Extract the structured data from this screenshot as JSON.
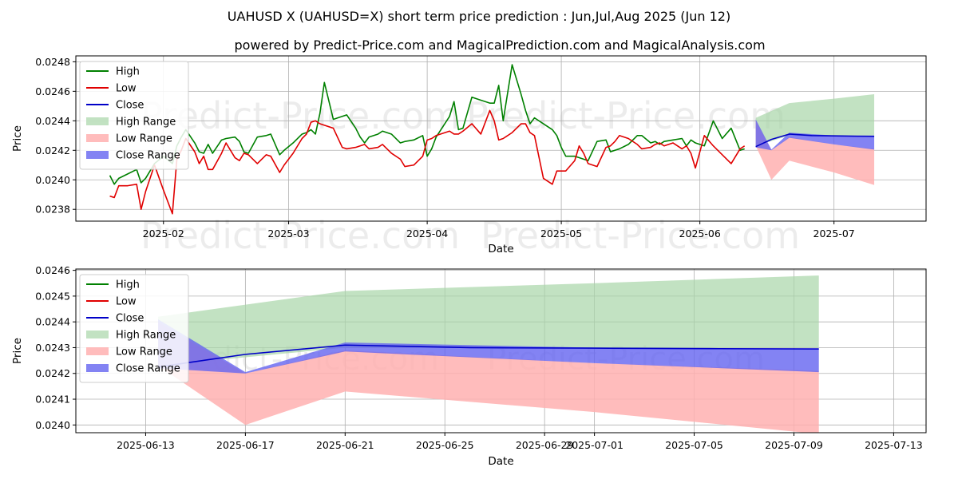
{
  "colors": {
    "high": "#008000",
    "low": "#e00000",
    "close": "#0000c8",
    "high_range": "#a8d5a8",
    "low_range": "#ffb0b0",
    "close_range": "#6464f0",
    "grid": "#b0b0b0"
  },
  "chart_data": [
    {
      "type": "line",
      "title": "UAHUSD X (UAHUSD=X) short term price prediction : Jun,Jul,Aug 2025 (Jun 12)",
      "subtitle": "powered by Predict-Price.com and MagicalPrediction.com and MagicalAnalysis.com",
      "watermarks": [
        "Predict-Price.com",
        "Predict-Price.com",
        "Predict-Price.com",
        "Predict-Price.com"
      ],
      "xlabel": "Date",
      "ylabel": "Price",
      "x_unit": "days since 2025-01-01",
      "xlim": [
        11.4,
        201.6
      ],
      "ylim": [
        0.02372,
        0.02484
      ],
      "x_ticks": [
        {
          "x": 31,
          "label": "2025-02"
        },
        {
          "x": 59,
          "label": "2025-03"
        },
        {
          "x": 90,
          "label": "2025-04"
        },
        {
          "x": 120,
          "label": "2025-05"
        },
        {
          "x": 151,
          "label": "2025-06"
        },
        {
          "x": 181,
          "label": "2025-07"
        }
      ],
      "y_ticks": [
        {
          "v": 0.0238,
          "label": "0.0238"
        },
        {
          "v": 0.024,
          "label": "0.0240"
        },
        {
          "v": 0.0242,
          "label": "0.0242"
        },
        {
          "v": 0.0244,
          "label": "0.0244"
        },
        {
          "v": 0.0246,
          "label": "0.0246"
        },
        {
          "v": 0.0248,
          "label": "0.0248"
        }
      ],
      "legend": [
        "High",
        "Low",
        "Close",
        "High Range",
        "Low Range",
        "Close Range"
      ],
      "legend_position": "top-left",
      "series": [
        {
          "name": "High",
          "x": [
            19,
            20,
            21,
            23,
            25,
            26,
            27,
            29,
            31,
            33,
            34,
            35,
            36,
            38,
            39,
            40,
            41,
            42,
            44,
            45,
            47,
            48,
            49,
            50,
            52,
            54,
            55,
            57,
            58,
            60,
            62,
            63,
            64,
            65,
            66,
            67,
            69,
            71,
            72,
            74,
            75,
            76,
            77,
            79,
            80,
            82,
            84,
            85,
            87,
            89,
            90,
            91,
            92,
            95,
            96,
            97,
            98,
            100,
            102,
            104,
            105,
            106,
            107,
            109,
            111,
            112,
            113,
            114,
            116,
            118,
            119,
            120,
            121,
            123,
            124,
            125,
            126,
            128,
            130,
            131,
            132,
            133,
            135,
            137,
            138,
            140,
            141,
            142,
            143,
            145,
            147,
            148,
            149,
            150,
            152,
            154,
            156,
            158,
            160,
            161
          ],
          "y": [
            0.02403,
            0.02397,
            0.02401,
            0.02404,
            0.02407,
            0.02398,
            0.02401,
            0.02411,
            0.02416,
            0.02411,
            0.02423,
            0.02429,
            0.02434,
            0.02425,
            0.02419,
            0.02418,
            0.02424,
            0.02418,
            0.02427,
            0.02428,
            0.02429,
            0.02426,
            0.02419,
            0.02418,
            0.02429,
            0.0243,
            0.02431,
            0.02417,
            0.0242,
            0.02425,
            0.02431,
            0.02432,
            0.02434,
            0.02431,
            0.02445,
            0.02466,
            0.02441,
            0.02443,
            0.02444,
            0.02435,
            0.02429,
            0.02425,
            0.02429,
            0.02431,
            0.02433,
            0.02431,
            0.02425,
            0.02426,
            0.02427,
            0.0243,
            0.02416,
            0.02421,
            0.02429,
            0.02443,
            0.02453,
            0.02434,
            0.02435,
            0.02456,
            0.02454,
            0.02452,
            0.02452,
            0.02464,
            0.0244,
            0.02478,
            0.02458,
            0.02447,
            0.02438,
            0.02442,
            0.02438,
            0.02434,
            0.0243,
            0.02422,
            0.02416,
            0.02416,
            0.02415,
            0.02414,
            0.02413,
            0.02426,
            0.02427,
            0.02419,
            0.0242,
            0.02421,
            0.02424,
            0.0243,
            0.0243,
            0.02425,
            0.02426,
            0.02424,
            0.02426,
            0.02427,
            0.02428,
            0.02423,
            0.02427,
            0.02425,
            0.02423,
            0.0244,
            0.02428,
            0.02435,
            0.0242,
            0.02421
          ]
        },
        {
          "name": "Low",
          "x": [
            19,
            20,
            21,
            23,
            25,
            26,
            27,
            29,
            31,
            33,
            34,
            35,
            36,
            38,
            39,
            40,
            41,
            42,
            44,
            45,
            47,
            48,
            49,
            50,
            52,
            54,
            55,
            57,
            58,
            60,
            62,
            63,
            64,
            65,
            66,
            67,
            69,
            71,
            72,
            74,
            75,
            76,
            77,
            79,
            80,
            82,
            84,
            85,
            87,
            89,
            90,
            91,
            92,
            95,
            96,
            97,
            98,
            100,
            102,
            104,
            105,
            106,
            107,
            109,
            111,
            112,
            113,
            114,
            116,
            118,
            119,
            120,
            121,
            123,
            124,
            125,
            126,
            128,
            130,
            131,
            132,
            133,
            135,
            137,
            138,
            140,
            141,
            142,
            143,
            145,
            147,
            148,
            149,
            150,
            152,
            154,
            156,
            158,
            160,
            161
          ],
          "y": [
            0.02389,
            0.02388,
            0.02396,
            0.02396,
            0.02397,
            0.0238,
            0.02392,
            0.0241,
            0.02393,
            0.02377,
            0.02414,
            0.0242,
            0.02428,
            0.02419,
            0.02411,
            0.02416,
            0.02407,
            0.02407,
            0.02418,
            0.02425,
            0.02415,
            0.02413,
            0.02418,
            0.02417,
            0.02411,
            0.02417,
            0.02416,
            0.02405,
            0.0241,
            0.02418,
            0.02428,
            0.02431,
            0.02439,
            0.0244,
            0.02438,
            0.02437,
            0.02435,
            0.02422,
            0.02421,
            0.02422,
            0.02423,
            0.02424,
            0.02421,
            0.02422,
            0.02424,
            0.02418,
            0.02414,
            0.02409,
            0.0241,
            0.02416,
            0.02427,
            0.02428,
            0.0243,
            0.02433,
            0.02431,
            0.02431,
            0.02433,
            0.02438,
            0.02431,
            0.02447,
            0.0244,
            0.02427,
            0.02428,
            0.02432,
            0.02438,
            0.02438,
            0.02432,
            0.0243,
            0.02401,
            0.02397,
            0.02406,
            0.02406,
            0.02406,
            0.02413,
            0.02423,
            0.02418,
            0.02411,
            0.02409,
            0.02422,
            0.02423,
            0.02426,
            0.0243,
            0.02428,
            0.02424,
            0.02421,
            0.02422,
            0.02424,
            0.02425,
            0.02423,
            0.02425,
            0.02421,
            0.02423,
            0.02418,
            0.02408,
            0.0243,
            0.02423,
            0.02417,
            0.02411,
            0.02421,
            0.02423
          ]
        },
        {
          "name": "Close",
          "x": [
            163.5,
            167,
            171,
            176,
            181,
            186,
            190
          ],
          "y": [
            0.024225,
            0.024274,
            0.02431,
            0.0243,
            0.024298,
            0.024296,
            0.024295
          ]
        }
      ],
      "ranges": [
        {
          "name": "High Range",
          "x": [
            163.5,
            171,
            181,
            190
          ],
          "lower": [
            0.02423,
            0.0243,
            0.0243,
            0.0243
          ],
          "upper": [
            0.02442,
            0.02452,
            0.02455,
            0.02458
          ]
        },
        {
          "name": "Low Range",
          "x": [
            163.5,
            167,
            171,
            181,
            190
          ],
          "lower": [
            0.02423,
            0.024,
            0.02413,
            0.02405,
            0.023965
          ],
          "upper": [
            0.0244,
            0.0242,
            0.02429,
            0.02424,
            0.02421
          ]
        },
        {
          "name": "Close Range",
          "x": [
            163.5,
            167,
            171,
            181,
            190
          ],
          "lower": [
            0.02422,
            0.0242,
            0.024285,
            0.02424,
            0.024205
          ],
          "upper": [
            0.02441,
            0.024205,
            0.02432,
            0.0243,
            0.024295
          ]
        }
      ]
    },
    {
      "type": "line",
      "title": "",
      "watermarks": [
        "Predict-Price.com",
        "Predict-Price.com"
      ],
      "xlabel": "Date",
      "ylabel": "Price",
      "x_unit": "days since 2025-01-01",
      "xlim": [
        160.2,
        194.3
      ],
      "ylim": [
        0.02397,
        0.024605
      ],
      "x_ticks": [
        {
          "x": 163,
          "label": "2025-06-13"
        },
        {
          "x": 167,
          "label": "2025-06-17"
        },
        {
          "x": 171,
          "label": "2025-06-21"
        },
        {
          "x": 175,
          "label": "2025-06-25"
        },
        {
          "x": 179,
          "label": "2025-06-29"
        },
        {
          "x": 181,
          "label": "2025-07-01"
        },
        {
          "x": 185,
          "label": "2025-07-05"
        },
        {
          "x": 189,
          "label": "2025-07-09"
        },
        {
          "x": 193,
          "label": "2025-07-13"
        }
      ],
      "y_ticks": [
        {
          "v": 0.024,
          "label": "0.0240"
        },
        {
          "v": 0.0241,
          "label": "0.0241"
        },
        {
          "v": 0.0242,
          "label": "0.0242"
        },
        {
          "v": 0.0243,
          "label": "0.0243"
        },
        {
          "v": 0.0244,
          "label": "0.0244"
        },
        {
          "v": 0.0245,
          "label": "0.0245"
        },
        {
          "v": 0.0246,
          "label": "0.0246"
        }
      ],
      "legend": [
        "High",
        "Low",
        "Close",
        "High Range",
        "Low Range",
        "Close Range"
      ],
      "legend_position": "top-left",
      "series": [
        {
          "name": "High",
          "x": [],
          "y": []
        },
        {
          "name": "Low",
          "x": [],
          "y": []
        },
        {
          "name": "Close",
          "x": [
            163.5,
            167,
            171,
            176,
            181,
            186,
            190
          ],
          "y": [
            0.024225,
            0.024274,
            0.02431,
            0.0243,
            0.024298,
            0.024296,
            0.024295
          ]
        }
      ],
      "ranges": [
        {
          "name": "High Range",
          "x": [
            163.5,
            171,
            181,
            190
          ],
          "lower": [
            0.02423,
            0.0243,
            0.0243,
            0.0243
          ],
          "upper": [
            0.02442,
            0.02452,
            0.02455,
            0.02458
          ]
        },
        {
          "name": "Low Range",
          "x": [
            163.5,
            167,
            171,
            181,
            190
          ],
          "lower": [
            0.02423,
            0.024,
            0.02413,
            0.02405,
            0.023965
          ],
          "upper": [
            0.0244,
            0.0242,
            0.02429,
            0.02424,
            0.02421
          ]
        },
        {
          "name": "Close Range",
          "x": [
            163.5,
            167,
            171,
            181,
            190
          ],
          "lower": [
            0.02422,
            0.0242,
            0.024285,
            0.02424,
            0.024205
          ],
          "upper": [
            0.02441,
            0.024205,
            0.02432,
            0.0243,
            0.024295
          ]
        }
      ]
    }
  ]
}
